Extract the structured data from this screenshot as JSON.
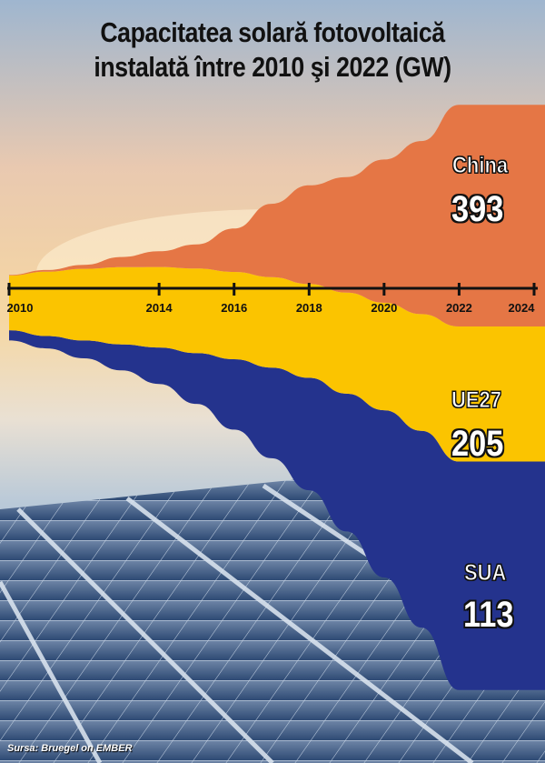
{
  "title_line1": "Capacitatea solară fotovoltaică",
  "title_line2": "instalată între 2010 şi 2022 (GW)",
  "source": "Sursa: Bruegel on EMBER",
  "colors": {
    "china": "#E57645",
    "eu": "#FBC400",
    "usa": "#24338D",
    "axis": "#111111"
  },
  "chart_data": {
    "type": "area",
    "title": "Capacitatea solară fotovoltaică instalată între 2010 şi 2022 (GW)",
    "x": [
      2010,
      2011,
      2012,
      2013,
      2014,
      2015,
      2016,
      2017,
      2018,
      2019,
      2020,
      2021,
      2022
    ],
    "x_ticks": [
      "2010",
      "2014",
      "2016",
      "2018",
      "2020",
      "2022",
      "2024"
    ],
    "xlim": [
      2010,
      2024
    ],
    "series": [
      {
        "name": "China",
        "values": [
          1,
          3,
          7,
          18,
          28,
          43,
          77,
          130,
          175,
          205,
          254,
          307,
          393
        ],
        "final_label": "393",
        "color": "#E57645"
      },
      {
        "name": "UE27",
        "values": [
          30,
          51,
          67,
          79,
          86,
          95,
          101,
          108,
          115,
          131,
          145,
          165,
          205
        ],
        "final_label": "205",
        "color": "#FBC400"
      },
      {
        "name": "SUA",
        "values": [
          2,
          4,
          8,
          13,
          18,
          26,
          40,
          51,
          61,
          73,
          89,
          101,
          113
        ],
        "final_label": "113",
        "color": "#24338D"
      }
    ],
    "legend": "inline-right"
  }
}
